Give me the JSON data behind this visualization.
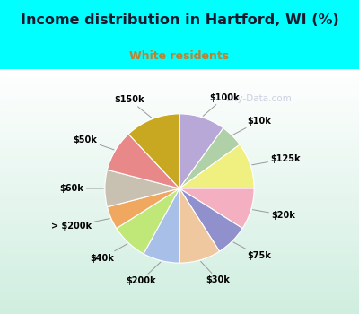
{
  "title": "Income distribution in Hartford, WI (%)",
  "subtitle": "White residents",
  "labels": [
    "$100k",
    "$10k",
    "$125k",
    "$20k",
    "$75k",
    "$30k",
    "$200k",
    "$40k",
    "> $200k",
    "$60k",
    "$50k",
    "$150k"
  ],
  "values": [
    10,
    5,
    10,
    9,
    7,
    9,
    8,
    8,
    5,
    8,
    9,
    12
  ],
  "colors": [
    "#b8a8d8",
    "#b0d0a8",
    "#f0f080",
    "#f4afc0",
    "#9090cc",
    "#f0c8a0",
    "#a8c0e8",
    "#c0e878",
    "#f0a860",
    "#c8c0b0",
    "#e88888",
    "#c8a820"
  ],
  "background_top": "#00ffff",
  "title_color": "#1a1a2e",
  "subtitle_color": "#c08030",
  "watermark": "City-Data.com"
}
